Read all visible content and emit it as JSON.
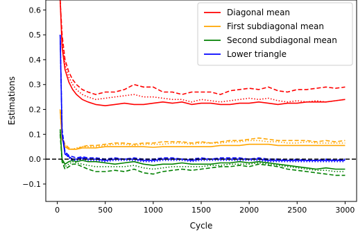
{
  "chart_data": {
    "type": "line",
    "xlabel": "Cycle",
    "ylabel": "Estimations",
    "xlim": [
      -120,
      3120
    ],
    "ylim": [
      -0.17,
      0.64
    ],
    "xticks": [
      0,
      500,
      1000,
      1500,
      2000,
      2500,
      3000
    ],
    "yticks": [
      -0.1,
      0.0,
      0.1,
      0.2,
      0.3,
      0.4,
      0.5,
      0.6
    ],
    "ytick_labels": [
      "−0.1",
      "0.0",
      "0.1",
      "0.2",
      "0.3",
      "0.4",
      "0.5",
      "0.6"
    ],
    "legend_position": "top-right",
    "reference_line": {
      "y": 0.0,
      "style": "dashed",
      "color": "#000000"
    },
    "series": [
      {
        "name": "Diagonal mean",
        "group": "diag",
        "color": "#ff0000",
        "style": "solid",
        "x": [
          30,
          50,
          80,
          120,
          160,
          200,
          260,
          320,
          400,
          500,
          600,
          700,
          800,
          900,
          1000,
          1100,
          1200,
          1300,
          1400,
          1500,
          1600,
          1700,
          1800,
          1900,
          2000,
          2100,
          2200,
          2300,
          2400,
          2500,
          2600,
          2700,
          2800,
          2900,
          3000
        ],
        "y": [
          0.64,
          0.45,
          0.36,
          0.31,
          0.28,
          0.26,
          0.24,
          0.23,
          0.22,
          0.215,
          0.22,
          0.225,
          0.22,
          0.22,
          0.225,
          0.23,
          0.225,
          0.23,
          0.22,
          0.225,
          0.225,
          0.22,
          0.22,
          0.225,
          0.225,
          0.23,
          0.225,
          0.22,
          0.225,
          0.225,
          0.23,
          0.23,
          0.23,
          0.235,
          0.24
        ]
      },
      {
        "name": "",
        "group": "diag",
        "color": "#ff0000",
        "style": "dashed",
        "x": [
          30,
          50,
          80,
          120,
          160,
          200,
          260,
          320,
          400,
          500,
          600,
          700,
          800,
          900,
          1000,
          1100,
          1200,
          1300,
          1400,
          1500,
          1600,
          1700,
          1800,
          1900,
          2000,
          2100,
          2200,
          2300,
          2400,
          2500,
          2600,
          2700,
          2800,
          2900,
          3000
        ],
        "y": [
          0.64,
          0.5,
          0.4,
          0.35,
          0.32,
          0.3,
          0.28,
          0.27,
          0.26,
          0.27,
          0.27,
          0.28,
          0.3,
          0.29,
          0.29,
          0.27,
          0.27,
          0.26,
          0.27,
          0.27,
          0.27,
          0.26,
          0.275,
          0.28,
          0.285,
          0.28,
          0.29,
          0.275,
          0.27,
          0.28,
          0.28,
          0.285,
          0.29,
          0.285,
          0.29
        ]
      },
      {
        "name": "",
        "group": "diag",
        "color": "#ff0000",
        "style": "dotted",
        "x": [
          30,
          50,
          80,
          120,
          160,
          200,
          260,
          320,
          400,
          500,
          600,
          700,
          800,
          900,
          1000,
          1100,
          1200,
          1300,
          1400,
          1500,
          1600,
          1700,
          1800,
          1900,
          2000,
          2100,
          2200,
          2300,
          2400,
          2500,
          2600,
          2700,
          2800,
          2900,
          3000
        ],
        "y": [
          0.64,
          0.48,
          0.38,
          0.33,
          0.3,
          0.28,
          0.26,
          0.25,
          0.24,
          0.245,
          0.25,
          0.255,
          0.26,
          0.25,
          0.25,
          0.245,
          0.24,
          0.24,
          0.23,
          0.24,
          0.235,
          0.23,
          0.235,
          0.24,
          0.245,
          0.24,
          0.245,
          0.235,
          0.23,
          0.235,
          0.23,
          0.235,
          0.23,
          0.235,
          0.24
        ]
      },
      {
        "name": "First subdiagonal mean",
        "group": "sub1",
        "color": "#ffa500",
        "style": "solid",
        "x": [
          30,
          50,
          80,
          120,
          160,
          200,
          260,
          320,
          400,
          500,
          600,
          700,
          800,
          900,
          1000,
          1100,
          1200,
          1300,
          1400,
          1500,
          1600,
          1700,
          1800,
          1900,
          2000,
          2100,
          2200,
          2300,
          2400,
          2500,
          2600,
          2700,
          2800,
          2900,
          3000
        ],
        "y": [
          0.2,
          0.08,
          0.05,
          0.04,
          0.04,
          0.04,
          0.045,
          0.045,
          0.045,
          0.05,
          0.05,
          0.05,
          0.05,
          0.05,
          0.048,
          0.05,
          0.05,
          0.05,
          0.05,
          0.05,
          0.05,
          0.055,
          0.055,
          0.055,
          0.06,
          0.06,
          0.06,
          0.055,
          0.055,
          0.055,
          0.055,
          0.055,
          0.055,
          0.055,
          0.055
        ]
      },
      {
        "name": "",
        "group": "sub1",
        "color": "#ffa500",
        "style": "dashed",
        "x": [
          30,
          50,
          80,
          120,
          160,
          200,
          260,
          320,
          400,
          500,
          600,
          700,
          800,
          900,
          1000,
          1100,
          1200,
          1300,
          1400,
          1500,
          1600,
          1700,
          1800,
          1900,
          2000,
          2100,
          2200,
          2300,
          2400,
          2500,
          2600,
          2700,
          2800,
          2900,
          3000
        ],
        "y": [
          0.2,
          0.09,
          0.06,
          0.045,
          0.04,
          0.04,
          0.05,
          0.055,
          0.055,
          0.06,
          0.065,
          0.065,
          0.06,
          0.065,
          0.065,
          0.07,
          0.07,
          0.07,
          0.065,
          0.07,
          0.065,
          0.07,
          0.075,
          0.075,
          0.08,
          0.085,
          0.08,
          0.075,
          0.075,
          0.075,
          0.075,
          0.07,
          0.075,
          0.07,
          0.075
        ]
      },
      {
        "name": "",
        "group": "sub1",
        "color": "#ffa500",
        "style": "dotted",
        "x": [
          30,
          50,
          80,
          120,
          160,
          200,
          260,
          320,
          400,
          500,
          600,
          700,
          800,
          900,
          1000,
          1100,
          1200,
          1300,
          1400,
          1500,
          1600,
          1700,
          1800,
          1900,
          2000,
          2100,
          2200,
          2300,
          2400,
          2500,
          2600,
          2700,
          2800,
          2900,
          3000
        ],
        "y": [
          0.2,
          0.085,
          0.055,
          0.04,
          0.04,
          0.045,
          0.05,
          0.05,
          0.05,
          0.055,
          0.06,
          0.06,
          0.055,
          0.06,
          0.06,
          0.06,
          0.065,
          0.065,
          0.06,
          0.065,
          0.065,
          0.065,
          0.07,
          0.07,
          0.075,
          0.075,
          0.07,
          0.07,
          0.065,
          0.065,
          0.07,
          0.065,
          0.065,
          0.065,
          0.065
        ]
      },
      {
        "name": "Second subdiagonal mean",
        "group": "sub2",
        "color": "#008000",
        "style": "solid",
        "x": [
          30,
          50,
          80,
          120,
          160,
          200,
          260,
          320,
          400,
          500,
          600,
          700,
          800,
          900,
          1000,
          1100,
          1200,
          1300,
          1400,
          1500,
          1600,
          1700,
          1800,
          1900,
          2000,
          2100,
          2200,
          2300,
          2400,
          2500,
          2600,
          2700,
          2800,
          2900,
          3000
        ],
        "y": [
          0.12,
          0.0,
          -0.02,
          -0.01,
          -0.005,
          -0.01,
          -0.005,
          -0.01,
          -0.01,
          -0.015,
          -0.02,
          -0.015,
          -0.01,
          -0.02,
          -0.025,
          -0.02,
          -0.02,
          -0.015,
          -0.02,
          -0.02,
          -0.02,
          -0.015,
          -0.015,
          -0.01,
          -0.015,
          -0.01,
          -0.015,
          -0.02,
          -0.025,
          -0.03,
          -0.035,
          -0.04,
          -0.035,
          -0.04,
          -0.04
        ]
      },
      {
        "name": "",
        "group": "sub2",
        "color": "#008000",
        "style": "dashed",
        "x": [
          30,
          50,
          80,
          120,
          160,
          200,
          260,
          320,
          400,
          500,
          600,
          700,
          800,
          900,
          1000,
          1100,
          1200,
          1300,
          1400,
          1500,
          1600,
          1700,
          1800,
          1900,
          2000,
          2100,
          2200,
          2300,
          2400,
          2500,
          2600,
          2700,
          2800,
          2900,
          3000
        ],
        "y": [
          0.1,
          -0.01,
          -0.04,
          -0.03,
          -0.02,
          -0.02,
          -0.03,
          -0.04,
          -0.05,
          -0.05,
          -0.045,
          -0.05,
          -0.04,
          -0.055,
          -0.06,
          -0.05,
          -0.045,
          -0.04,
          -0.045,
          -0.04,
          -0.035,
          -0.03,
          -0.03,
          -0.025,
          -0.03,
          -0.02,
          -0.025,
          -0.03,
          -0.04,
          -0.045,
          -0.05,
          -0.055,
          -0.06,
          -0.065,
          -0.065
        ]
      },
      {
        "name": "",
        "group": "sub2",
        "color": "#008000",
        "style": "dotted",
        "x": [
          30,
          50,
          80,
          120,
          160,
          200,
          260,
          320,
          400,
          500,
          600,
          700,
          800,
          900,
          1000,
          1100,
          1200,
          1300,
          1400,
          1500,
          1600,
          1700,
          1800,
          1900,
          2000,
          2100,
          2200,
          2300,
          2400,
          2500,
          2600,
          2700,
          2800,
          2900,
          3000
        ],
        "y": [
          0.11,
          -0.005,
          -0.03,
          -0.02,
          -0.01,
          -0.015,
          -0.02,
          -0.025,
          -0.03,
          -0.03,
          -0.03,
          -0.03,
          -0.025,
          -0.035,
          -0.04,
          -0.035,
          -0.03,
          -0.03,
          -0.03,
          -0.03,
          -0.025,
          -0.025,
          -0.02,
          -0.02,
          -0.02,
          -0.015,
          -0.02,
          -0.025,
          -0.03,
          -0.035,
          -0.04,
          -0.045,
          -0.045,
          -0.05,
          -0.05
        ]
      },
      {
        "name": "Lower triangle",
        "group": "lower",
        "color": "#0000ff",
        "style": "solid",
        "x": [
          30,
          50,
          80,
          120,
          160,
          200,
          260,
          320,
          400,
          500,
          600,
          700,
          800,
          900,
          1000,
          1100,
          1200,
          1300,
          1400,
          1500,
          1600,
          1700,
          1800,
          1900,
          2000,
          2100,
          2200,
          2300,
          2400,
          2500,
          2600,
          2700,
          2800,
          2900,
          3000
        ],
        "y": [
          0.5,
          0.1,
          0.02,
          0.01,
          0.0,
          0.0,
          0.005,
          0.0,
          0.0,
          -0.005,
          0.0,
          0.0,
          0.0,
          -0.005,
          -0.005,
          0.0,
          0.0,
          0.0,
          -0.005,
          0.0,
          0.0,
          0.0,
          0.0,
          0.0,
          0.0,
          0.0,
          -0.005,
          -0.005,
          -0.005,
          -0.005,
          -0.005,
          -0.005,
          -0.005,
          -0.005,
          -0.005
        ]
      },
      {
        "name": "",
        "group": "lower",
        "color": "#0000ff",
        "style": "dashed",
        "x": [
          30,
          50,
          80,
          120,
          160,
          200,
          260,
          320,
          400,
          500,
          600,
          700,
          800,
          900,
          1000,
          1100,
          1200,
          1300,
          1400,
          1500,
          1600,
          1700,
          1800,
          1900,
          2000,
          2100,
          2200,
          2300,
          2400,
          2500,
          2600,
          2700,
          2800,
          2900,
          3000
        ],
        "y": [
          0.5,
          0.12,
          0.03,
          0.015,
          0.01,
          0.005,
          0.01,
          0.005,
          0.005,
          0.0,
          0.005,
          0.0,
          0.005,
          0.0,
          0.0,
          0.005,
          0.005,
          0.0,
          0.0,
          0.005,
          0.0,
          0.005,
          0.005,
          0.005,
          0.0,
          0.005,
          0.0,
          0.0,
          -0.005,
          0.0,
          -0.005,
          -0.005,
          0.0,
          -0.005,
          0.0
        ]
      },
      {
        "name": "",
        "group": "lower",
        "color": "#0000ff",
        "style": "dotted",
        "x": [
          30,
          50,
          80,
          120,
          160,
          200,
          260,
          320,
          400,
          500,
          600,
          700,
          800,
          900,
          1000,
          1100,
          1200,
          1300,
          1400,
          1500,
          1600,
          1700,
          1800,
          1900,
          2000,
          2100,
          2200,
          2300,
          2400,
          2500,
          2600,
          2700,
          2800,
          2900,
          3000
        ],
        "y": [
          0.5,
          0.11,
          0.025,
          0.005,
          -0.005,
          -0.005,
          0.0,
          -0.005,
          -0.005,
          -0.01,
          -0.005,
          -0.005,
          -0.005,
          -0.01,
          -0.01,
          -0.005,
          -0.005,
          -0.005,
          -0.01,
          -0.005,
          -0.005,
          -0.005,
          -0.005,
          -0.005,
          -0.005,
          -0.005,
          -0.01,
          -0.01,
          -0.01,
          -0.01,
          -0.01,
          -0.01,
          -0.01,
          -0.01,
          -0.01
        ]
      }
    ]
  }
}
